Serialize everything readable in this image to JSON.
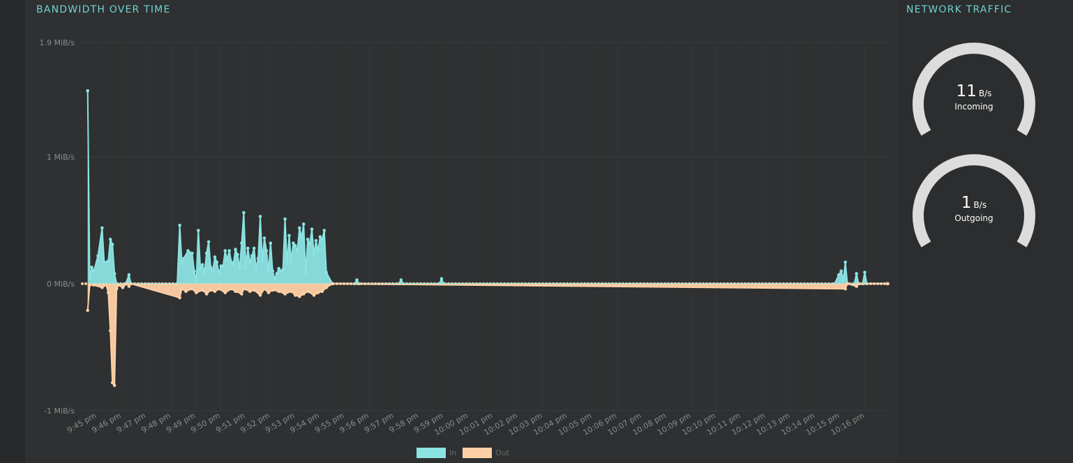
{
  "bandwidth_panel": {
    "title": "BANDWIDTH OVER TIME"
  },
  "traffic_panel": {
    "title": "NETWORK TRAFFIC",
    "gauges": [
      {
        "value": "11",
        "unit": "B/s",
        "label": "Incoming"
      },
      {
        "value": "1",
        "unit": "B/s",
        "label": "Outgoing"
      }
    ]
  },
  "colors": {
    "in": "#8be3e2",
    "out": "#ffd0a6",
    "gauge_track": "#dcdcdc",
    "title": "#6fd3d3"
  },
  "chart_data": {
    "type": "area",
    "title": "BANDWIDTH OVER TIME",
    "ylabel": "",
    "xlabel": "",
    "y_unit": "MiB/s",
    "ylim": [
      -1,
      1.9
    ],
    "y_ticks": [
      {
        "value": 1.9,
        "label": "1.9 MiB/s"
      },
      {
        "value": 1,
        "label": "1 MiB/s"
      },
      {
        "value": 0,
        "label": "0 MiB/s"
      },
      {
        "value": -1,
        "label": "-1 MiB/s"
      }
    ],
    "x_range": [
      "9:44:20 pm",
      "10:17:00 pm"
    ],
    "x_ticks": [
      "9:45 pm",
      "9:46 pm",
      "9:47 pm",
      "9:48 pm",
      "9:49 pm",
      "9:50 pm",
      "9:51 pm",
      "9:52 pm",
      "9:53 pm",
      "9:54 pm",
      "9:55 pm",
      "9:56 pm",
      "9:57 pm",
      "9:58 pm",
      "9:59 pm",
      "10:00 pm",
      "10:01 pm",
      "10:02 pm",
      "10:03 pm",
      "10:04 pm",
      "10:05 pm",
      "10:06 pm",
      "10:07 pm",
      "10:08 pm",
      "10:09 pm",
      "10:10 pm",
      "10:11 pm",
      "10:12 pm",
      "10:13 pm",
      "10:14 pm",
      "10:15 pm",
      "10:16 pm"
    ],
    "grid": true,
    "legend_position": "bottom",
    "series": [
      {
        "name": "In",
        "color": "#8be3e2",
        "points": [
          [
            "9:44:38 pm",
            1.52
          ],
          [
            "9:44:43 pm",
            0.04
          ],
          [
            "9:44:48 pm",
            0.13
          ],
          [
            "9:44:53 pm",
            0.1
          ],
          [
            "9:45:03 pm",
            0.22
          ],
          [
            "9:45:13 pm",
            0.44
          ],
          [
            "9:45:18 pm",
            0.17
          ],
          [
            "9:45:28 pm",
            0.18
          ],
          [
            "9:45:33 pm",
            0.35
          ],
          [
            "9:45:38 pm",
            0.31
          ],
          [
            "9:45:43 pm",
            0.08
          ],
          [
            "9:45:48 pm",
            0.0
          ],
          [
            "9:46:10 pm",
            0.0
          ],
          [
            "9:46:18 pm",
            0.07
          ],
          [
            "9:46:23 pm",
            0.0
          ],
          [
            "9:48:15 pm",
            0.0
          ],
          [
            "9:48:21 pm",
            0.46
          ],
          [
            "9:48:26 pm",
            0.17
          ],
          [
            "9:48:31 pm",
            0.2
          ],
          [
            "9:48:41 pm",
            0.26
          ],
          [
            "9:48:51 pm",
            0.24
          ],
          [
            "9:48:56 pm",
            0.1
          ],
          [
            "9:49:01 pm",
            0.02
          ],
          [
            "9:49:06 pm",
            0.42
          ],
          [
            "9:49:11 pm",
            0.12
          ],
          [
            "9:49:16 pm",
            0.15
          ],
          [
            "9:49:21 pm",
            0.09
          ],
          [
            "9:49:26 pm",
            0.24
          ],
          [
            "9:49:31 pm",
            0.33
          ],
          [
            "9:49:36 pm",
            0.13
          ],
          [
            "9:49:41 pm",
            0.1
          ],
          [
            "9:49:46 pm",
            0.21
          ],
          [
            "9:49:51 pm",
            0.17
          ],
          [
            "9:49:56 pm",
            0.08
          ],
          [
            "9:50:01 pm",
            0.14
          ],
          [
            "9:50:06 pm",
            0.14
          ],
          [
            "9:50:11 pm",
            0.26
          ],
          [
            "9:50:16 pm",
            0.19
          ],
          [
            "9:50:21 pm",
            0.26
          ],
          [
            "9:50:26 pm",
            0.17
          ],
          [
            "9:50:31 pm",
            0.16
          ],
          [
            "9:50:36 pm",
            0.27
          ],
          [
            "9:50:41 pm",
            0.23
          ],
          [
            "9:50:46 pm",
            0.12
          ],
          [
            "9:50:51 pm",
            0.32
          ],
          [
            "9:50:56 pm",
            0.56
          ],
          [
            "9:51:01 pm",
            0.13
          ],
          [
            "9:51:06 pm",
            0.28
          ],
          [
            "9:51:11 pm",
            0.17
          ],
          [
            "9:51:16 pm",
            0.22
          ],
          [
            "9:51:21 pm",
            0.28
          ],
          [
            "9:51:26 pm",
            0.12
          ],
          [
            "9:51:31 pm",
            0.2
          ],
          [
            "9:51:36 pm",
            0.53
          ],
          [
            "9:51:41 pm",
            0.18
          ],
          [
            "9:51:46 pm",
            0.36
          ],
          [
            "9:51:51 pm",
            0.26
          ],
          [
            "9:51:56 pm",
            0.1
          ],
          [
            "9:52:01 pm",
            0.32
          ],
          [
            "9:52:06 pm",
            0.1
          ],
          [
            "9:52:11 pm",
            0.04
          ],
          [
            "9:52:16 pm",
            0.08
          ],
          [
            "9:52:21 pm",
            0.12
          ],
          [
            "9:52:26 pm",
            0.1
          ],
          [
            "9:52:31 pm",
            0.11
          ],
          [
            "9:52:36 pm",
            0.51
          ],
          [
            "9:52:41 pm",
            0.16
          ],
          [
            "9:52:46 pm",
            0.38
          ],
          [
            "9:52:51 pm",
            0.18
          ],
          [
            "9:52:56 pm",
            0.32
          ],
          [
            "9:53:01 pm",
            0.3
          ],
          [
            "9:53:06 pm",
            0.26
          ],
          [
            "9:53:11 pm",
            0.44
          ],
          [
            "9:53:16 pm",
            0.36
          ],
          [
            "9:53:21 pm",
            0.47
          ],
          [
            "9:53:26 pm",
            0.08
          ],
          [
            "9:53:31 pm",
            0.35
          ],
          [
            "9:53:36 pm",
            0.31
          ],
          [
            "9:53:41 pm",
            0.43
          ],
          [
            "9:53:46 pm",
            0.23
          ],
          [
            "9:53:51 pm",
            0.34
          ],
          [
            "9:53:56 pm",
            0.26
          ],
          [
            "9:54:01 pm",
            0.37
          ],
          [
            "9:54:06 pm",
            0.35
          ],
          [
            "9:54:11 pm",
            0.42
          ],
          [
            "9:54:16 pm",
            0.09
          ],
          [
            "9:54:31 pm",
            0.0
          ],
          [
            "9:55:25 pm",
            0.0
          ],
          [
            "9:55:30 pm",
            0.03
          ],
          [
            "9:55:35 pm",
            0.0
          ],
          [
            "9:57:12 pm",
            0.0
          ],
          [
            "9:57:17 pm",
            0.03
          ],
          [
            "9:57:22 pm",
            0.0
          ],
          [
            "9:58:50 pm",
            0.0
          ],
          [
            "9:58:55 pm",
            0.04
          ],
          [
            "9:59:00 pm",
            0.0
          ],
          [
            "10:14:47 pm",
            0.0
          ],
          [
            "10:14:57 pm",
            0.07
          ],
          [
            "10:15:03 pm",
            0.1
          ],
          [
            "10:15:08 pm",
            0.03
          ],
          [
            "10:15:13 pm",
            0.17
          ],
          [
            "10:15:18 pm",
            0.0
          ],
          [
            "10:15:35 pm",
            0.0
          ],
          [
            "10:15:40 pm",
            0.08
          ],
          [
            "10:15:45 pm",
            0.0
          ],
          [
            "10:15:55 pm",
            0.0
          ],
          [
            "10:16:00 pm",
            0.09
          ],
          [
            "10:16:05 pm",
            0.0
          ],
          [
            "10:16:55 pm",
            0.0
          ]
        ]
      },
      {
        "name": "Out",
        "color": "#ffd0a6",
        "points": [
          [
            "9:44:38 pm",
            -0.21
          ],
          [
            "9:44:43 pm",
            -0.01
          ],
          [
            "9:44:53 pm",
            -0.01
          ],
          [
            "9:45:13 pm",
            -0.03
          ],
          [
            "9:45:23 pm",
            -0.01
          ],
          [
            "9:45:28 pm",
            -0.07
          ],
          [
            "9:45:33 pm",
            -0.37
          ],
          [
            "9:45:38 pm",
            -0.78
          ],
          [
            "9:45:43 pm",
            -0.8
          ],
          [
            "9:45:48 pm",
            -0.04
          ],
          [
            "9:45:53 pm",
            -0.01
          ],
          [
            "9:46:03 pm",
            -0.03
          ],
          [
            "9:46:13 pm",
            0.0
          ],
          [
            "9:46:18 pm",
            -0.02
          ],
          [
            "9:46:23 pm",
            0.0
          ],
          [
            "9:48:21 pm",
            -0.11
          ],
          [
            "9:48:26 pm",
            -0.04
          ],
          [
            "9:48:36 pm",
            -0.06
          ],
          [
            "9:48:51 pm",
            -0.04
          ],
          [
            "9:49:01 pm",
            -0.07
          ],
          [
            "9:49:16 pm",
            -0.05
          ],
          [
            "9:49:26 pm",
            -0.08
          ],
          [
            "9:49:36 pm",
            -0.05
          ],
          [
            "9:49:46 pm",
            -0.06
          ],
          [
            "9:49:56 pm",
            -0.04
          ],
          [
            "9:50:11 pm",
            -0.07
          ],
          [
            "9:50:26 pm",
            -0.04
          ],
          [
            "9:50:36 pm",
            -0.06
          ],
          [
            "9:50:51 pm",
            -0.08
          ],
          [
            "9:50:56 pm",
            -0.04
          ],
          [
            "9:51:11 pm",
            -0.06
          ],
          [
            "9:51:21 pm",
            -0.05
          ],
          [
            "9:51:36 pm",
            -0.09
          ],
          [
            "9:51:46 pm",
            -0.04
          ],
          [
            "9:51:56 pm",
            -0.07
          ],
          [
            "9:52:06 pm",
            -0.05
          ],
          [
            "9:52:21 pm",
            -0.06
          ],
          [
            "9:52:36 pm",
            -0.08
          ],
          [
            "9:52:51 pm",
            -0.06
          ],
          [
            "9:53:01 pm",
            -0.09
          ],
          [
            "9:53:11 pm",
            -0.1
          ],
          [
            "9:53:21 pm",
            -0.08
          ],
          [
            "9:53:31 pm",
            -0.06
          ],
          [
            "9:53:46 pm",
            -0.09
          ],
          [
            "9:53:56 pm",
            -0.07
          ],
          [
            "9:54:06 pm",
            -0.06
          ],
          [
            "9:54:16 pm",
            -0.03
          ],
          [
            "9:54:31 pm",
            0.0
          ],
          [
            "10:15:13 pm",
            -0.04
          ],
          [
            "10:15:18 pm",
            0.0
          ],
          [
            "10:15:40 pm",
            -0.02
          ],
          [
            "10:15:45 pm",
            0.0
          ],
          [
            "10:16:55 pm",
            0.0
          ]
        ]
      }
    ]
  }
}
